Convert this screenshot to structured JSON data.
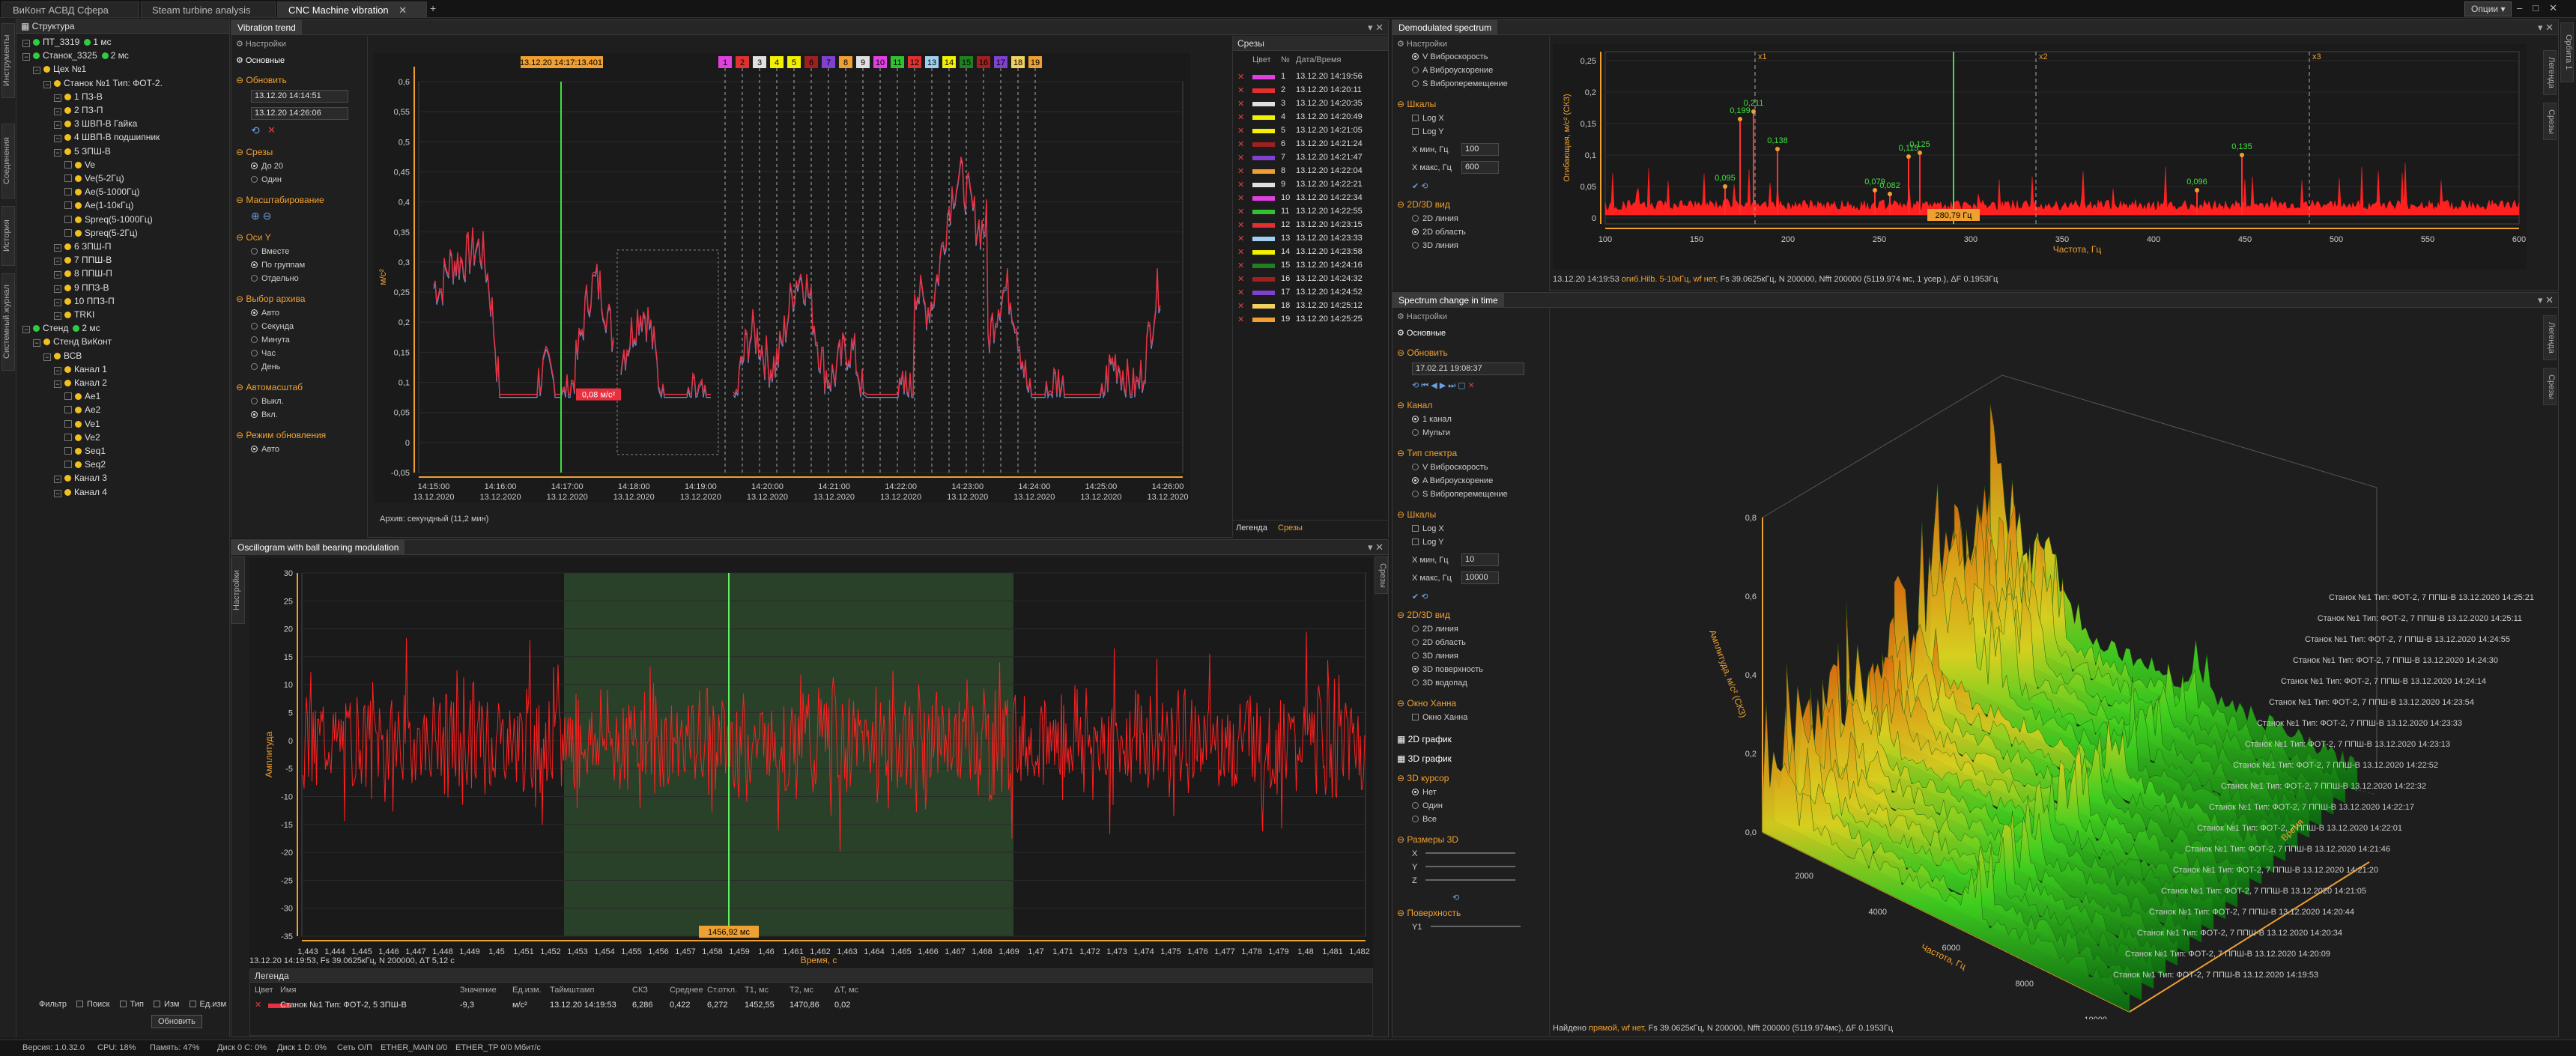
{
  "tabs": [
    "ВиКонт АСВД Сфера",
    "Steam turbine analysis",
    "CNC Machine vibration"
  ],
  "options_label": "Опции",
  "left_strip": [
    "Инструменты",
    "Соединения",
    "История",
    "Системный журнал"
  ],
  "tree": {
    "header": "Структура",
    "items": [
      {
        "t": "ПТ_3319",
        "i": 0,
        "ms": "1 мс",
        "d": "g"
      },
      {
        "t": "Станок_3325",
        "i": 0,
        "ms": "2 мс",
        "d": "g"
      },
      {
        "t": "Цех №1",
        "i": 1,
        "d": "y"
      },
      {
        "t": "Станок №1 Тип: ФОТ-2.",
        "i": 2,
        "d": "y"
      },
      {
        "t": "1 ПЗ-В",
        "i": 3,
        "d": "y"
      },
      {
        "t": "2 ПЗ-П",
        "i": 3,
        "d": "y"
      },
      {
        "t": "3 ШВП-В Гайка",
        "i": 3,
        "d": "y"
      },
      {
        "t": "4 ШВП-В подшипник",
        "i": 3,
        "d": "y"
      },
      {
        "t": "5 ЗПШ-В",
        "i": 3,
        "d": "y"
      },
      {
        "t": "Ve",
        "i": 4,
        "d": "y"
      },
      {
        "t": "Ve(5-2Гц)",
        "i": 4,
        "d": "y"
      },
      {
        "t": "Ae(5-1000Гц)",
        "i": 4,
        "d": "y"
      },
      {
        "t": "Ae(1-10кГц)",
        "i": 4,
        "d": "y"
      },
      {
        "t": "Spreq(5-1000Гц)",
        "i": 4,
        "d": "y"
      },
      {
        "t": "Spreq(5-2Гц)",
        "i": 4,
        "d": "y"
      },
      {
        "t": "6 ЗПШ-П",
        "i": 3,
        "d": "y"
      },
      {
        "t": "7 ППШ-В",
        "i": 3,
        "d": "y"
      },
      {
        "t": "8 ППШ-П",
        "i": 3,
        "d": "y"
      },
      {
        "t": "9 ППЗ-В",
        "i": 3,
        "d": "y"
      },
      {
        "t": "10 ППЗ-П",
        "i": 3,
        "d": "y"
      },
      {
        "t": "TRKI",
        "i": 3,
        "d": "y"
      },
      {
        "t": "Стенд",
        "i": 0,
        "ms": "2 мс",
        "d": "g"
      },
      {
        "t": "Стенд ВиКонт",
        "i": 1,
        "d": "y"
      },
      {
        "t": "ВСВ",
        "i": 2,
        "d": "y"
      },
      {
        "t": "Канал 1",
        "i": 3,
        "d": "y"
      },
      {
        "t": "Канал 2",
        "i": 3,
        "d": "y"
      },
      {
        "t": "Ae1",
        "i": 4,
        "d": "y"
      },
      {
        "t": "Ae2",
        "i": 4,
        "d": "y"
      },
      {
        "t": "Ve1",
        "i": 4,
        "d": "y"
      },
      {
        "t": "Ve2",
        "i": 4,
        "d": "y"
      },
      {
        "t": "Seq1",
        "i": 4,
        "d": "y"
      },
      {
        "t": "Seq2",
        "i": 4,
        "d": "y"
      },
      {
        "t": "Канал 3",
        "i": 3,
        "d": "y"
      },
      {
        "t": "Канал 4",
        "i": 3,
        "d": "y"
      }
    ],
    "filter_labels": [
      "Фильтр",
      "Поиск",
      "Тип",
      "Изм",
      "Ед.изм"
    ],
    "refresh_label": "Обновить"
  },
  "vibration_trend": {
    "title": "Vibration trend",
    "settings_header": "Настройки",
    "basic": "Основные",
    "refresh": "Обновить",
    "date1": "13.12.20 14:14:51",
    "date2": "13.12.20 14:26:06",
    "cuts": "Срезы",
    "cut_opts": [
      "До 20",
      "Один"
    ],
    "scaling": "Масштабирование",
    "axes_y": "Оси Y",
    "axes_opts": [
      "Вместе",
      "По группам",
      "Отдельно"
    ],
    "archive_choice": "Выбор архива",
    "archive_opts": [
      "Авто",
      "Секунда",
      "Минута",
      "Час",
      "День"
    ],
    "autoscale": "Автомасштаб",
    "autoscale_opts": [
      "Выкл.",
      "Вкл."
    ],
    "update_mode": "Режим обновления",
    "update_opts": [
      "Авто"
    ],
    "cursor_label": "13.12.20 14:17:13.401",
    "value_label": "0,08 м/с²",
    "ylabel": "м/с²",
    "archive_note": "Архив: секундный (11,2 мин)",
    "yticks": [
      "0,6",
      "0,55",
      "0,5",
      "0,45",
      "0,4",
      "0,35",
      "0,3",
      "0,25",
      "0,2",
      "0,15",
      "0,1",
      "0,05",
      "0",
      "-0,05"
    ],
    "xticks": [
      [
        "14:15:00",
        "13.12.2020"
      ],
      [
        "14:16:00",
        "13.12.2020"
      ],
      [
        "14:17:00",
        "13.12.2020"
      ],
      [
        "14:18:00",
        "13.12.2020"
      ],
      [
        "14:19:00",
        "13.12.2020"
      ],
      [
        "14:20:00",
        "13.12.2020"
      ],
      [
        "14:21:00",
        "13.12.2020"
      ],
      [
        "14:22:00",
        "13.12.2020"
      ],
      [
        "14:23:00",
        "13.12.2020"
      ],
      [
        "14:24:00",
        "13.12.2020"
      ],
      [
        "14:25:00",
        "13.12.2020"
      ],
      [
        "14:26:00",
        "13.12.2020"
      ]
    ],
    "markers": [
      {
        "n": "1",
        "c": "#e040e0"
      },
      {
        "n": "2",
        "c": "#e03030"
      },
      {
        "n": "3",
        "c": "#e0e0e0"
      },
      {
        "n": "4",
        "c": "#f0f000"
      },
      {
        "n": "5",
        "c": "#f0f000"
      },
      {
        "n": "6",
        "c": "#a02020"
      },
      {
        "n": "7",
        "c": "#8040d0"
      },
      {
        "n": "8",
        "c": "#f0a030"
      },
      {
        "n": "9",
        "c": "#e0e0e0"
      },
      {
        "n": "10",
        "c": "#e040e0"
      },
      {
        "n": "11",
        "c": "#30c030"
      },
      {
        "n": "12",
        "c": "#e03030"
      },
      {
        "n": "13",
        "c": "#a0d0f0"
      },
      {
        "n": "14",
        "c": "#f0f000"
      },
      {
        "n": "15",
        "c": "#208020"
      },
      {
        "n": "16",
        "c": "#a02020"
      },
      {
        "n": "17",
        "c": "#8040d0"
      },
      {
        "n": "18",
        "c": "#f0d060"
      },
      {
        "n": "19",
        "c": "#f0a030"
      }
    ]
  },
  "cuts_panel": {
    "header": "Срезы",
    "cols": [
      "Цвет",
      "№",
      "Дата/Время"
    ],
    "rows": [
      {
        "n": "1",
        "c": "#e040e0",
        "t": "13.12.20 14:19:56"
      },
      {
        "n": "2",
        "c": "#e03030",
        "t": "13.12.20 14:20:11"
      },
      {
        "n": "3",
        "c": "#e0e0e0",
        "t": "13.12.20 14:20:35"
      },
      {
        "n": "4",
        "c": "#f0f000",
        "t": "13.12.20 14:20:49"
      },
      {
        "n": "5",
        "c": "#f0f000",
        "t": "13.12.20 14:21:05"
      },
      {
        "n": "6",
        "c": "#a02020",
        "t": "13.12.20 14:21:24"
      },
      {
        "n": "7",
        "c": "#8040d0",
        "t": "13.12.20 14:21:47"
      },
      {
        "n": "8",
        "c": "#f0a030",
        "t": "13.12.20 14:22:04"
      },
      {
        "n": "9",
        "c": "#e0e0e0",
        "t": "13.12.20 14:22:21"
      },
      {
        "n": "10",
        "c": "#e040e0",
        "t": "13.12.20 14:22:34"
      },
      {
        "n": "11",
        "c": "#30c030",
        "t": "13.12.20 14:22:55"
      },
      {
        "n": "12",
        "c": "#e03030",
        "t": "13.12.20 14:23:15"
      },
      {
        "n": "13",
        "c": "#a0d0f0",
        "t": "13.12.20 14:23:33"
      },
      {
        "n": "14",
        "c": "#f0f000",
        "t": "13.12.20 14:23:58"
      },
      {
        "n": "15",
        "c": "#208020",
        "t": "13.12.20 14:24:16"
      },
      {
        "n": "16",
        "c": "#a02020",
        "t": "13.12.20 14:24:32"
      },
      {
        "n": "17",
        "c": "#8040d0",
        "t": "13.12.20 14:24:52"
      },
      {
        "n": "18",
        "c": "#f0d060",
        "t": "13.12.20 14:25:12"
      },
      {
        "n": "19",
        "c": "#f0a030",
        "t": "13.12.20 14:25:25"
      }
    ],
    "tabs": [
      "Легенда",
      "Срезы"
    ]
  },
  "oscillogram": {
    "title": "Oscillogram with ball bearing modulation",
    "side_tab": "Настройки",
    "side_tab_right": "Срезы",
    "ylabel": "Амплитуда",
    "xlabel": "Время, с",
    "yticks": [
      "30",
      "25",
      "20",
      "15",
      "10",
      "5",
      "0",
      "-5",
      "-10",
      "-15",
      "-20",
      "-25",
      "-30",
      "-35"
    ],
    "xticks": [
      "1,443",
      "1,444",
      "1,445",
      "1,446",
      "1,447",
      "1,448",
      "1,449",
      "1,45",
      "1,451",
      "1,452",
      "1,453",
      "1,454",
      "1,455",
      "1,456",
      "1,457",
      "1,458",
      "1,459",
      "1,46",
      "1,461",
      "1,462",
      "1,463",
      "1,464",
      "1,465",
      "1,466",
      "1,467",
      "1,468",
      "1,469",
      "1,47",
      "1,471",
      "1,472",
      "1,473",
      "1,474",
      "1,475",
      "1,476",
      "1,477",
      "1,478",
      "1,479",
      "1,48",
      "1,481",
      "1,482"
    ],
    "cursor_label": "1456,92 мс",
    "info": "13.12.20 14:19:53, Fs 39.0625кГц, N 200000, ΔT 5,12 с",
    "legend_header": "Легенда",
    "legend_cols": [
      "Цвет",
      "Имя",
      "Значение",
      "Ед.изм.",
      "Таймштамп",
      "СКЗ",
      "Среднее",
      "Ст.откл.",
      "T1, мс",
      "T2, мс",
      "ΔT, мс"
    ],
    "legend_row": [
      "",
      "Станок №1 Тип: ФОТ-2, 5 ЗПШ-В",
      "-9,3",
      "м/с²",
      "13.12.20 14:19:53",
      "6,286",
      "0,422",
      "6,272",
      "1452,55",
      "1470,86",
      "0,02"
    ]
  },
  "demod": {
    "title": "Demodulated spectrum",
    "settings": "Настройки",
    "type_opts": [
      "V Виброскорость",
      "A Виброускорение",
      "S Виброперемещение"
    ],
    "scales": "Шкалы",
    "scale_opts": [
      "Log X",
      "Log Y"
    ],
    "xmin_label": "X мин, Гц",
    "xmin": "100",
    "xmax_label": "X макс, Гц",
    "xmax": "600",
    "view": "2D/3D вид",
    "view_opts": [
      "2D линия",
      "2D область",
      "3D линия"
    ],
    "ylabel": "Огибающая, м/с² (СКЗ)",
    "xlabel": "Частота, Гц",
    "yticks": [
      "0,25",
      "0,2",
      "0,15",
      "0,1",
      "0,05",
      "0"
    ],
    "xticks": [
      "100",
      "150",
      "200",
      "250",
      "300",
      "350",
      "400",
      "450",
      "500",
      "550",
      "600"
    ],
    "cursor_label": "280,79 Гц",
    "harmonics": [
      "x1",
      "x2",
      "x3"
    ],
    "peaks": [
      "0,095",
      "0,199",
      "0,211",
      "0,138",
      "0,079",
      "0,082",
      "0,115",
      "0,125",
      "0,096",
      "0,135"
    ],
    "info_prefix": "13.12.20 14:19:53",
    "info_hl": "огиб.Hilb. 5-10кГц, wf нет,",
    "info_rest": "Fs 39.0625кГц, N 200000, Nfft 200000 (5119.974 мс, 1 усер.), ΔF 0.1953Гц",
    "side_tabs": [
      "Легенда",
      "Срезы"
    ],
    "right_strip": "Орбита 1"
  },
  "spec_change": {
    "title": "Spectrum change in time",
    "settings": "Настройки",
    "basic": "Основные",
    "refresh": "Обновить",
    "date": "17.02.21 19:08:37",
    "channel": "Канал",
    "channel_opts": [
      "1 канал",
      "Мульти"
    ],
    "spec_type": "Тип спектра",
    "type_opts": [
      "V Виброскорость",
      "A Виброускорение",
      "S Виброперемещение"
    ],
    "scales": "Шкалы",
    "scale_opts": [
      "Log X",
      "Log Y"
    ],
    "xmin_label": "X мин, Гц",
    "xmin": "10",
    "xmax_label": "X макс, Гц",
    "xmax": "10000",
    "view": "2D/3D вид",
    "view_opts": [
      "2D линия",
      "2D область",
      "3D линия",
      "3D поверхность",
      "3D водопад"
    ],
    "hann": "Окно Ханна",
    "hann_opt": "Окно Ханна",
    "g2d": "2D график",
    "g3d": "3D график",
    "cursor3d": "3D курсор",
    "cursor_opts": [
      "Нет",
      "Один",
      "Все"
    ],
    "size3d": "Размеры 3D",
    "axes": [
      "X",
      "Y",
      "Z"
    ],
    "surface": "Поверхность",
    "y1": "Y1",
    "zlabel": "Амплитуда, м/с² (СКЗ)",
    "zticks": [
      "0,8",
      "0,6",
      "0,4",
      "0,2",
      "0,0"
    ],
    "freq_label": "Частота, Гц",
    "freq_ticks": [
      "2000",
      "4000",
      "6000",
      "8000",
      "10000"
    ],
    "time_axis": "Время",
    "time_labels": [
      "Станок №1 Тип: ФОТ-2, 7 ППШ-В 13.12.2020 14:25:21",
      "Станок №1 Тип: ФОТ-2, 7 ППШ-В 13.12.2020 14:25:11",
      "Станок №1 Тип: ФОТ-2, 7 ППШ-В 13.12.2020 14:24:55",
      "Станок №1 Тип: ФОТ-2, 7 ППШ-В 13.12.2020 14:24:30",
      "Станок №1 Тип: ФОТ-2, 7 ППШ-В 13.12.2020 14:24:14",
      "Станок №1 Тип: ФОТ-2, 7 ППШ-В 13.12.2020 14:23:54",
      "Станок №1 Тип: ФОТ-2, 7 ППШ-В 13.12.2020 14:23:33",
      "Станок №1 Тип: ФОТ-2, 7 ППШ-В 13.12.2020 14:23:13",
      "Станок №1 Тип: ФОТ-2, 7 ППШ-В 13.12.2020 14:22:52",
      "Станок №1 Тип: ФОТ-2, 7 ППШ-В 13.12.2020 14:22:32",
      "Станок №1 Тип: ФОТ-2, 7 ППШ-В 13.12.2020 14:22:17",
      "Станок №1 Тип: ФОТ-2, 7 ППШ-В 13.12.2020 14:22:01",
      "Станок №1 Тип: ФОТ-2, 7 ППШ-В 13.12.2020 14:21:46",
      "Станок №1 Тип: ФОТ-2, 7 ППШ-В 13.12.2020 14:21:20",
      "Станок №1 Тип: ФОТ-2, 7 ППШ-В 13.12.2020 14:21:05",
      "Станок №1 Тип: ФОТ-2, 7 ППШ-В 13.12.2020 14:20:44",
      "Станок №1 Тип: ФОТ-2, 7 ППШ-В 13.12.2020 14:20:34",
      "Станок №1 Тип: ФОТ-2, 7 ППШ-В 13.12.2020 14:20:09",
      "Станок №1 Тип: ФОТ-2, 7 ППШ-В 13.12.2020 14:19:53"
    ],
    "found_prefix": "Найдено",
    "found_hl": "прямой, wf нет,",
    "found_rest": "Fs 39.0625кГц, N 200000, Nfft 200000 (5119.974мс), ΔF 0.1953Гц",
    "side_tabs": [
      "Легенда",
      "Срезы"
    ]
  },
  "status": {
    "version": "Версия: 1.0.32.0",
    "cpu": "CPU: 18%",
    "mem": "Память: 47%",
    "disk0": "Диск 0 C: 0%",
    "disk1": "Диск 1 D: 0%",
    "net": "Сеть О/П",
    "ether1": "ETHER_MAIN 0/0",
    "ether2": "ETHER_TP 0/0 Мбит/с"
  }
}
